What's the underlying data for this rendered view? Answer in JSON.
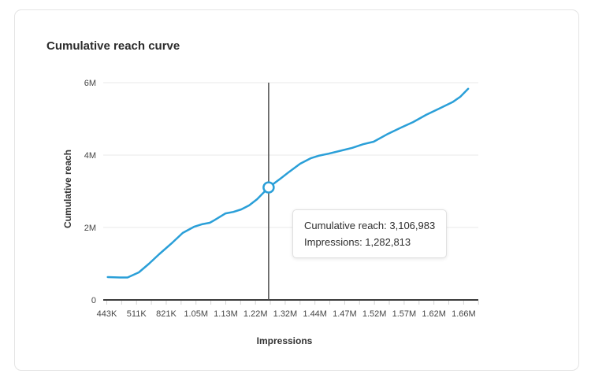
{
  "card": {
    "title": "Cumulative reach curve"
  },
  "chart_data": {
    "type": "line",
    "title": "Cumulative reach curve",
    "xlabel": "Impressions",
    "ylabel": "Cumulative reach",
    "ylim_reach": [
      0,
      6000000
    ],
    "grid": "horizontal-only",
    "y_ticks": [
      {
        "label": "0",
        "value_m": 0
      },
      {
        "label": "2M",
        "value_m": 2
      },
      {
        "label": "4M",
        "value_m": 4
      },
      {
        "label": "6M",
        "value_m": 6
      }
    ],
    "x_tick_labels": [
      "443K",
      "511K",
      "821K",
      "1.05M",
      "1.13M",
      "1.22M",
      "1.32M",
      "1.44M",
      "1.47M",
      "1.52M",
      "1.57M",
      "1.62M",
      "1.66M"
    ],
    "series": [
      {
        "name": "Cumulative reach",
        "color": "#2a9fd8",
        "points_note": "pairs of [x fraction across plot 0-1, cumulative reach in millions]",
        "points": [
          [
            0.012,
            0.63
          ],
          [
            0.045,
            0.62
          ],
          [
            0.065,
            0.62
          ],
          [
            0.095,
            0.76
          ],
          [
            0.122,
            1.0
          ],
          [
            0.149,
            1.26
          ],
          [
            0.185,
            1.59
          ],
          [
            0.212,
            1.85
          ],
          [
            0.242,
            2.02
          ],
          [
            0.263,
            2.09
          ],
          [
            0.284,
            2.13
          ],
          [
            0.296,
            2.2
          ],
          [
            0.326,
            2.39
          ],
          [
            0.347,
            2.43
          ],
          [
            0.368,
            2.5
          ],
          [
            0.389,
            2.61
          ],
          [
            0.41,
            2.78
          ],
          [
            0.441,
            3.107
          ],
          [
            0.475,
            3.37
          ],
          [
            0.496,
            3.54
          ],
          [
            0.525,
            3.76
          ],
          [
            0.553,
            3.91
          ],
          [
            0.574,
            3.98
          ],
          [
            0.601,
            4.04
          ],
          [
            0.637,
            4.13
          ],
          [
            0.664,
            4.2
          ],
          [
            0.693,
            4.3
          ],
          [
            0.721,
            4.37
          ],
          [
            0.756,
            4.57
          ],
          [
            0.79,
            4.74
          ],
          [
            0.826,
            4.91
          ],
          [
            0.861,
            5.11
          ],
          [
            0.895,
            5.28
          ],
          [
            0.931,
            5.46
          ],
          [
            0.952,
            5.61
          ],
          [
            0.973,
            5.83
          ]
        ]
      }
    ],
    "crosshair": {
      "x_fraction": 0.441,
      "reach_m": 3.107,
      "cumulative_reach": 3106983,
      "impressions": 1282813
    },
    "tooltip": {
      "line1": "Cumulative reach: 3,106,983",
      "line2": "Impressions: 1,282,813"
    },
    "legend": "none"
  },
  "colors": {
    "accent_line": "#2a9fd8",
    "crosshair": "#4b4b4b",
    "axis": "#3c3c3c",
    "gridline": "#e9e9e9",
    "card_border": "#e4e4e4",
    "text_primary": "#2c2c2c",
    "text_tick": "#464646"
  }
}
